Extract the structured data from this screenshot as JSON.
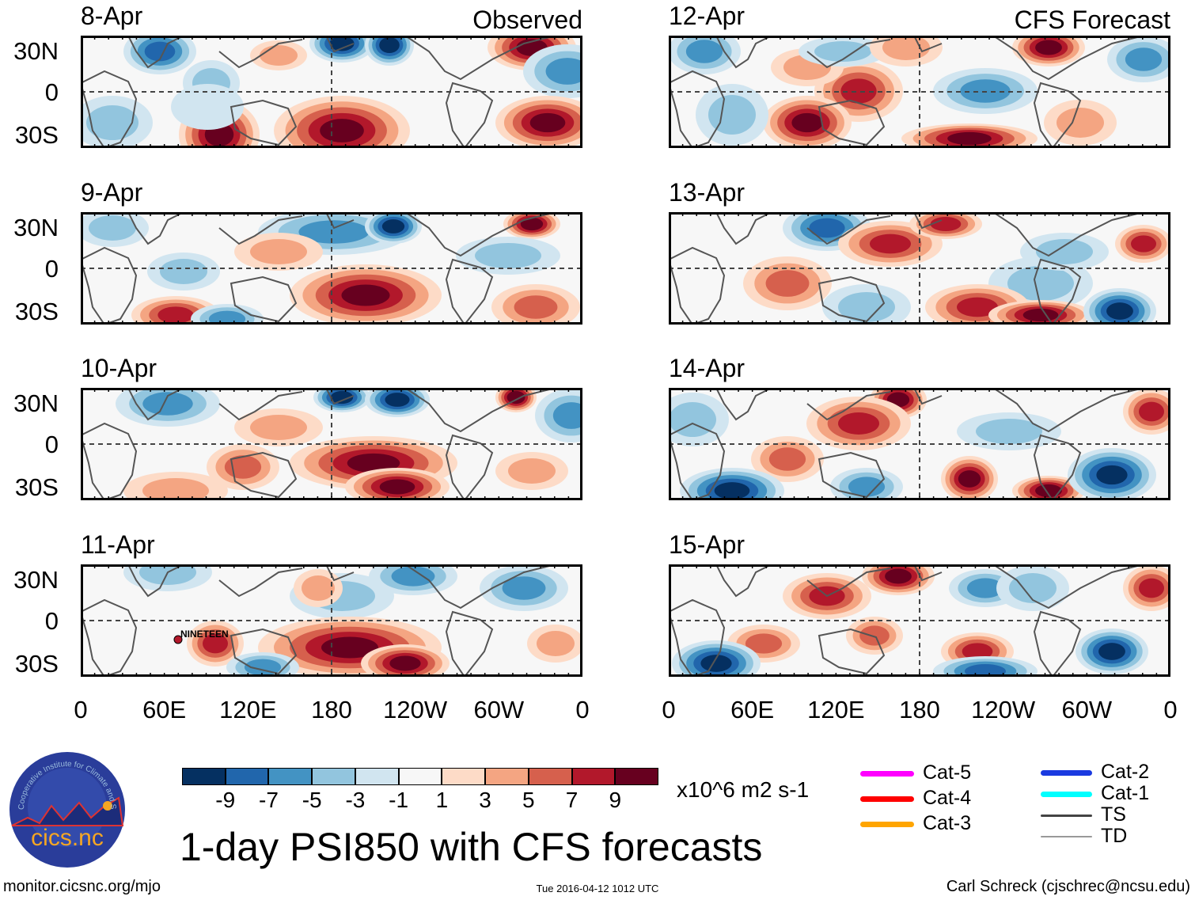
{
  "chart_data": {
    "type": "heatmap",
    "title": "1-day PSI850 with CFS forecasts",
    "variable": "PSI850 anomaly",
    "units": "x10^6 m2 s-1",
    "lat_ticks": [
      "30N",
      "0",
      "30S"
    ],
    "lon_ticks": [
      "0",
      "60E",
      "120E",
      "180",
      "120W",
      "60W",
      "0"
    ],
    "colorbar": {
      "ticks": [
        "-9",
        "-7",
        "-5",
        "-3",
        "-1",
        "1",
        "3",
        "5",
        "7",
        "9"
      ],
      "colors": [
        "#053061",
        "#2166ac",
        "#4393c3",
        "#92c5de",
        "#d1e5f0",
        "#f7f7f7",
        "#fddbc7",
        "#f4a582",
        "#d6604d",
        "#b2182b",
        "#67001f"
      ]
    },
    "panels": [
      {
        "date": "8-Apr",
        "label": "Observed"
      },
      {
        "date": "9-Apr"
      },
      {
        "date": "10-Apr"
      },
      {
        "date": "11-Apr",
        "storm": "NINETEEN"
      },
      {
        "date": "12-Apr",
        "label": "CFS Forecast"
      },
      {
        "date": "13-Apr"
      },
      {
        "date": "14-Apr"
      },
      {
        "date": "15-Apr"
      }
    ]
  },
  "legend": [
    {
      "label": "Cat-5",
      "color": "#ff00ff"
    },
    {
      "label": "Cat-4",
      "color": "#ff0000"
    },
    {
      "label": "Cat-3",
      "color": "#ffa500"
    },
    {
      "label": "Cat-2",
      "color": "#1a3ae0"
    },
    {
      "label": "Cat-1",
      "color": "#00ffff"
    },
    {
      "label": "TS",
      "color": "#444444"
    },
    {
      "label": "TD",
      "color": "#999999"
    }
  ],
  "logo": {
    "text": "cics.nc",
    "ring": "Cooperative Institute for Climate and Satellites"
  },
  "footer": {
    "left": "monitor.cicsnc.org/mjo",
    "center": "Tue 2016-04-12 1012 UTC",
    "right": "Carl Schreck (cjschrec@ncsu.edu)"
  }
}
